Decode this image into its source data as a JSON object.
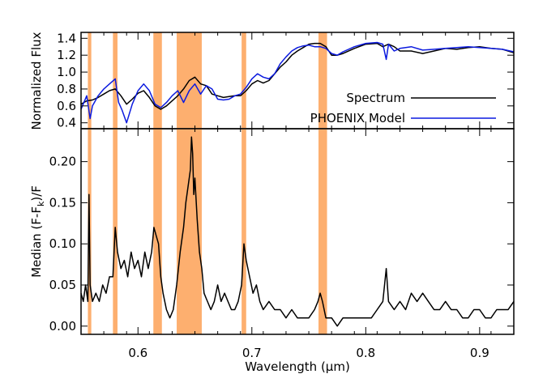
{
  "figure": {
    "xlabel": "Wavelength (μm)",
    "top_ylabel": "Normalized Flux",
    "bottom_ylabel_main": "Median (F-F",
    "bottom_ylabel_sub": "k",
    "bottom_ylabel_tail": ")/F"
  },
  "colors": {
    "band": "#fdaf6f",
    "spectrum": "#000000",
    "model": "#0b1adf",
    "axis": "#000000"
  },
  "chart_data": [
    {
      "type": "line",
      "panel": "top",
      "ylabel": "Normalized Flux",
      "xlim": [
        0.55,
        0.93
      ],
      "ylim": [
        0.33,
        1.47
      ],
      "yticks": [
        0.4,
        0.6,
        0.8,
        1.0,
        1.2,
        1.4
      ],
      "ytick_labels": [
        "0.4",
        "0.6",
        "0.8",
        "1.0",
        "1.2",
        "1.4"
      ],
      "legend": {
        "placement": "bottom-right",
        "entries": [
          "Spectrum",
          "PHOENIX Model"
        ]
      },
      "bands": [
        [
          0.556,
          0.559
        ],
        [
          0.578,
          0.582
        ],
        [
          0.6135,
          0.621
        ],
        [
          0.634,
          0.656
        ],
        [
          0.691,
          0.695
        ],
        [
          0.7585,
          0.766
        ]
      ],
      "series": [
        {
          "name": "Spectrum",
          "color": "#000000",
          "x": [
            0.55,
            0.555,
            0.56,
            0.565,
            0.57,
            0.575,
            0.58,
            0.585,
            0.59,
            0.595,
            0.6,
            0.605,
            0.61,
            0.615,
            0.62,
            0.625,
            0.63,
            0.635,
            0.64,
            0.645,
            0.65,
            0.655,
            0.66,
            0.665,
            0.67,
            0.675,
            0.68,
            0.685,
            0.69,
            0.695,
            0.7,
            0.705,
            0.71,
            0.715,
            0.72,
            0.725,
            0.73,
            0.735,
            0.74,
            0.745,
            0.75,
            0.755,
            0.76,
            0.765,
            0.77,
            0.775,
            0.78,
            0.79,
            0.8,
            0.81,
            0.815,
            0.82,
            0.825,
            0.83,
            0.84,
            0.85,
            0.86,
            0.87,
            0.88,
            0.89,
            0.9,
            0.91,
            0.92,
            0.93
          ],
          "y": [
            0.62,
            0.66,
            0.67,
            0.7,
            0.74,
            0.78,
            0.8,
            0.72,
            0.62,
            0.68,
            0.75,
            0.78,
            0.7,
            0.6,
            0.56,
            0.6,
            0.66,
            0.72,
            0.8,
            0.9,
            0.94,
            0.86,
            0.84,
            0.74,
            0.72,
            0.7,
            0.71,
            0.72,
            0.72,
            0.78,
            0.86,
            0.9,
            0.87,
            0.9,
            0.98,
            1.06,
            1.12,
            1.2,
            1.25,
            1.29,
            1.33,
            1.34,
            1.34,
            1.3,
            1.2,
            1.2,
            1.22,
            1.28,
            1.33,
            1.34,
            1.3,
            1.33,
            1.3,
            1.25,
            1.25,
            1.22,
            1.25,
            1.28,
            1.27,
            1.29,
            1.3,
            1.28,
            1.27,
            1.23
          ]
        },
        {
          "name": "PHOENIX Model",
          "color": "#0b1adf",
          "x": [
            0.55,
            0.555,
            0.558,
            0.56,
            0.565,
            0.57,
            0.575,
            0.58,
            0.583,
            0.586,
            0.59,
            0.595,
            0.6,
            0.605,
            0.61,
            0.615,
            0.62,
            0.625,
            0.63,
            0.635,
            0.64,
            0.645,
            0.65,
            0.655,
            0.66,
            0.665,
            0.67,
            0.675,
            0.68,
            0.685,
            0.69,
            0.695,
            0.7,
            0.705,
            0.71,
            0.715,
            0.72,
            0.725,
            0.73,
            0.735,
            0.74,
            0.745,
            0.75,
            0.755,
            0.76,
            0.765,
            0.77,
            0.775,
            0.78,
            0.79,
            0.8,
            0.81,
            0.815,
            0.818,
            0.82,
            0.825,
            0.83,
            0.84,
            0.85,
            0.86,
            0.87,
            0.88,
            0.89,
            0.9,
            0.91,
            0.92,
            0.93
          ],
          "y": [
            0.56,
            0.72,
            0.45,
            0.6,
            0.72,
            0.8,
            0.86,
            0.92,
            0.64,
            0.55,
            0.4,
            0.62,
            0.78,
            0.86,
            0.78,
            0.62,
            0.58,
            0.64,
            0.72,
            0.78,
            0.64,
            0.78,
            0.86,
            0.74,
            0.84,
            0.8,
            0.68,
            0.67,
            0.68,
            0.72,
            0.74,
            0.82,
            0.92,
            0.98,
            0.94,
            0.92,
            0.98,
            1.1,
            1.18,
            1.25,
            1.29,
            1.31,
            1.32,
            1.3,
            1.3,
            1.28,
            1.22,
            1.2,
            1.24,
            1.3,
            1.34,
            1.35,
            1.33,
            1.15,
            1.33,
            1.25,
            1.28,
            1.3,
            1.26,
            1.27,
            1.28,
            1.29,
            1.3,
            1.29,
            1.28,
            1.27,
            1.24
          ]
        }
      ]
    },
    {
      "type": "line",
      "panel": "bottom",
      "xlabel": "Wavelength (μm)",
      "ylabel": "Median (F-Fk)/F",
      "xlim": [
        0.55,
        0.93
      ],
      "ylim": [
        -0.01,
        0.24
      ],
      "xticks": [
        0.6,
        0.7,
        0.8,
        0.9
      ],
      "xtick_labels": [
        "0.6",
        "0.7",
        "0.8",
        "0.9"
      ],
      "yticks": [
        0.0,
        0.05,
        0.1,
        0.15,
        0.2
      ],
      "ytick_labels": [
        "0.00",
        "0.05",
        "0.10",
        "0.15",
        "0.20"
      ],
      "bands": [
        [
          0.556,
          0.559
        ],
        [
          0.578,
          0.582
        ],
        [
          0.6135,
          0.621
        ],
        [
          0.634,
          0.656
        ],
        [
          0.691,
          0.695
        ],
        [
          0.7585,
          0.766
        ]
      ],
      "series": [
        {
          "color": "#000000",
          "x": [
            0.55,
            0.552,
            0.554,
            0.556,
            0.557,
            0.558,
            0.56,
            0.563,
            0.566,
            0.569,
            0.572,
            0.575,
            0.578,
            0.58,
            0.582,
            0.585,
            0.588,
            0.591,
            0.594,
            0.597,
            0.6,
            0.603,
            0.606,
            0.609,
            0.612,
            0.614,
            0.616,
            0.618,
            0.62,
            0.622,
            0.625,
            0.628,
            0.631,
            0.634,
            0.637,
            0.64,
            0.642,
            0.644,
            0.646,
            0.647,
            0.648,
            0.649,
            0.65,
            0.652,
            0.654,
            0.656,
            0.658,
            0.661,
            0.664,
            0.667,
            0.67,
            0.673,
            0.676,
            0.679,
            0.682,
            0.685,
            0.688,
            0.691,
            0.693,
            0.695,
            0.698,
            0.701,
            0.704,
            0.707,
            0.71,
            0.715,
            0.72,
            0.725,
            0.73,
            0.735,
            0.74,
            0.745,
            0.75,
            0.755,
            0.758,
            0.76,
            0.762,
            0.765,
            0.77,
            0.775,
            0.78,
            0.79,
            0.8,
            0.805,
            0.81,
            0.815,
            0.818,
            0.82,
            0.825,
            0.83,
            0.835,
            0.84,
            0.845,
            0.85,
            0.855,
            0.86,
            0.865,
            0.87,
            0.875,
            0.88,
            0.885,
            0.89,
            0.895,
            0.9,
            0.905,
            0.91,
            0.915,
            0.92,
            0.925,
            0.93
          ],
          "y": [
            0.04,
            0.03,
            0.05,
            0.03,
            0.16,
            0.05,
            0.03,
            0.04,
            0.03,
            0.05,
            0.04,
            0.06,
            0.06,
            0.12,
            0.09,
            0.07,
            0.08,
            0.06,
            0.09,
            0.07,
            0.08,
            0.06,
            0.09,
            0.07,
            0.09,
            0.12,
            0.11,
            0.1,
            0.06,
            0.04,
            0.02,
            0.01,
            0.02,
            0.05,
            0.09,
            0.12,
            0.15,
            0.17,
            0.19,
            0.23,
            0.21,
            0.16,
            0.18,
            0.13,
            0.09,
            0.07,
            0.04,
            0.03,
            0.02,
            0.03,
            0.05,
            0.03,
            0.04,
            0.03,
            0.02,
            0.02,
            0.03,
            0.05,
            0.1,
            0.08,
            0.06,
            0.04,
            0.05,
            0.03,
            0.02,
            0.03,
            0.02,
            0.02,
            0.01,
            0.02,
            0.01,
            0.01,
            0.01,
            0.02,
            0.03,
            0.04,
            0.03,
            0.01,
            0.01,
            0.0,
            0.01,
            0.01,
            0.01,
            0.01,
            0.02,
            0.03,
            0.07,
            0.03,
            0.02,
            0.03,
            0.02,
            0.04,
            0.03,
            0.04,
            0.03,
            0.02,
            0.02,
            0.03,
            0.02,
            0.02,
            0.01,
            0.01,
            0.02,
            0.02,
            0.01,
            0.01,
            0.02,
            0.02,
            0.02,
            0.03
          ]
        }
      ]
    }
  ]
}
